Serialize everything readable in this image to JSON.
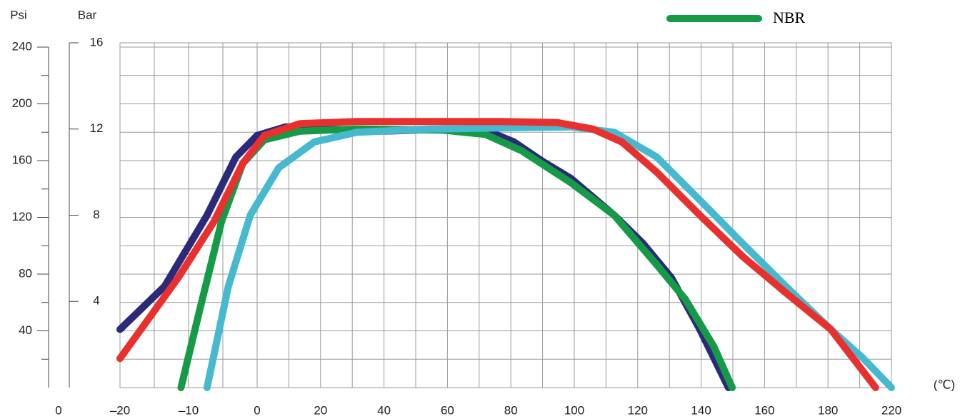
{
  "chart_data": {
    "type": "line",
    "legend": "top-right",
    "xlabel": "(℃)",
    "ylabel": "Bar",
    "y2label": "Psi",
    "xlim": [
      -20,
      220
    ],
    "xticks": [
      {
        "value": -20,
        "label": "–20"
      },
      {
        "value": -10,
        "label": "–10"
      },
      0,
      20,
      40,
      60,
      80,
      100,
      120,
      140,
      160,
      180,
      220
    ],
    "ylim": [
      0,
      16
    ],
    "yticks": [
      4,
      8,
      12,
      16
    ],
    "y2lim": [
      0,
      240
    ],
    "y2ticks": [
      0,
      40,
      80,
      120,
      160,
      200,
      240
    ],
    "y2minor_ticks": [
      20,
      60,
      100,
      140,
      180,
      220
    ],
    "grid": true,
    "series": [
      {
        "color": "#2b2a7a",
        "x": [
          -20,
          -13.5,
          -7.3,
          -3.1,
          0,
          9,
          20,
          40.5,
          58.6,
          72,
          81,
          90,
          99,
          112.6,
          121.6,
          130.6,
          139.6,
          148.6
        ],
        "values": [
          2.7,
          4.7,
          8.0,
          10.7,
          11.7,
          12.1,
          12.0,
          11.9,
          12.0,
          11.95,
          11.4,
          10.5,
          9.7,
          8.0,
          6.7,
          5.1,
          2.7,
          0
        ]
      },
      {
        "name": "NBR",
        "color": "#159a48",
        "x": [
          -11.1,
          -8.3,
          -5.2,
          -2.1,
          2.3,
          13.5,
          31.5,
          58.6,
          72,
          83.3,
          99,
          112.6,
          126,
          135,
          144,
          149.8
        ],
        "values": [
          0,
          3.7,
          7.7,
          10.4,
          11.5,
          11.9,
          12.0,
          11.95,
          11.75,
          11.0,
          9.5,
          8.0,
          5.7,
          4.1,
          1.9,
          0
        ]
      },
      {
        "color": "#47b9cf",
        "x": [
          -7.3,
          -4.2,
          -1,
          6.8,
          18,
          31.5,
          54,
          99,
          112.6,
          126,
          139.6,
          153,
          166.7,
          181.8,
          201.6,
          220
        ],
        "values": [
          0,
          4.7,
          8.0,
          10.2,
          11.4,
          11.85,
          12.0,
          12.1,
          11.85,
          10.7,
          8.7,
          6.7,
          4.7,
          2.7,
          1.4,
          0
        ]
      },
      {
        "color": "#e8312f",
        "x": [
          -20,
          -11.5,
          -6.3,
          -2.1,
          2.3,
          13.5,
          31.5,
          54,
          76.6,
          94.6,
          105.9,
          115,
          126,
          139.6,
          153,
          166.7,
          181.8,
          210
        ],
        "values": [
          1.35,
          5.1,
          7.7,
          10.4,
          11.7,
          12.25,
          12.35,
          12.35,
          12.35,
          12.3,
          12.0,
          11.4,
          10.0,
          8.0,
          6.1,
          4.4,
          2.7,
          0
        ]
      }
    ]
  }
}
